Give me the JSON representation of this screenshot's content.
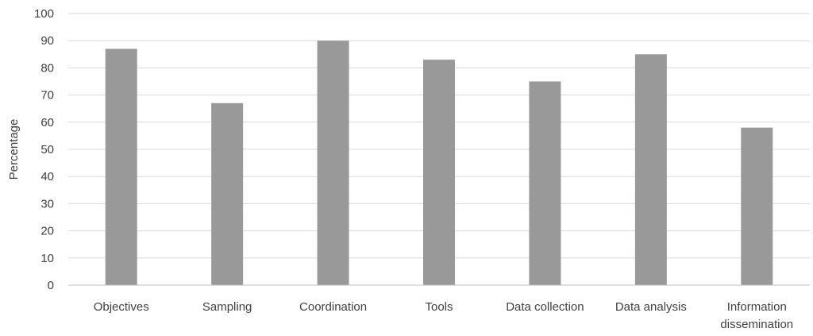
{
  "chart_data": {
    "type": "bar",
    "categories": [
      [
        "Objectives"
      ],
      [
        "Sampling"
      ],
      [
        "Coordination"
      ],
      [
        "Tools"
      ],
      [
        "Data collection"
      ],
      [
        "Data analysis"
      ],
      [
        "Information",
        "dissemination"
      ]
    ],
    "values": [
      87,
      67,
      90,
      83,
      75,
      85,
      58
    ],
    "ylabel": "Percentage",
    "ylim": [
      0,
      100
    ],
    "yticks": [
      0,
      10,
      20,
      30,
      40,
      50,
      60,
      70,
      80,
      90,
      100
    ],
    "grid": true,
    "colors": {
      "bar": "#999999",
      "grid": "#d9d9d9",
      "axis": "#bfbfbf",
      "text": "#404040"
    }
  }
}
